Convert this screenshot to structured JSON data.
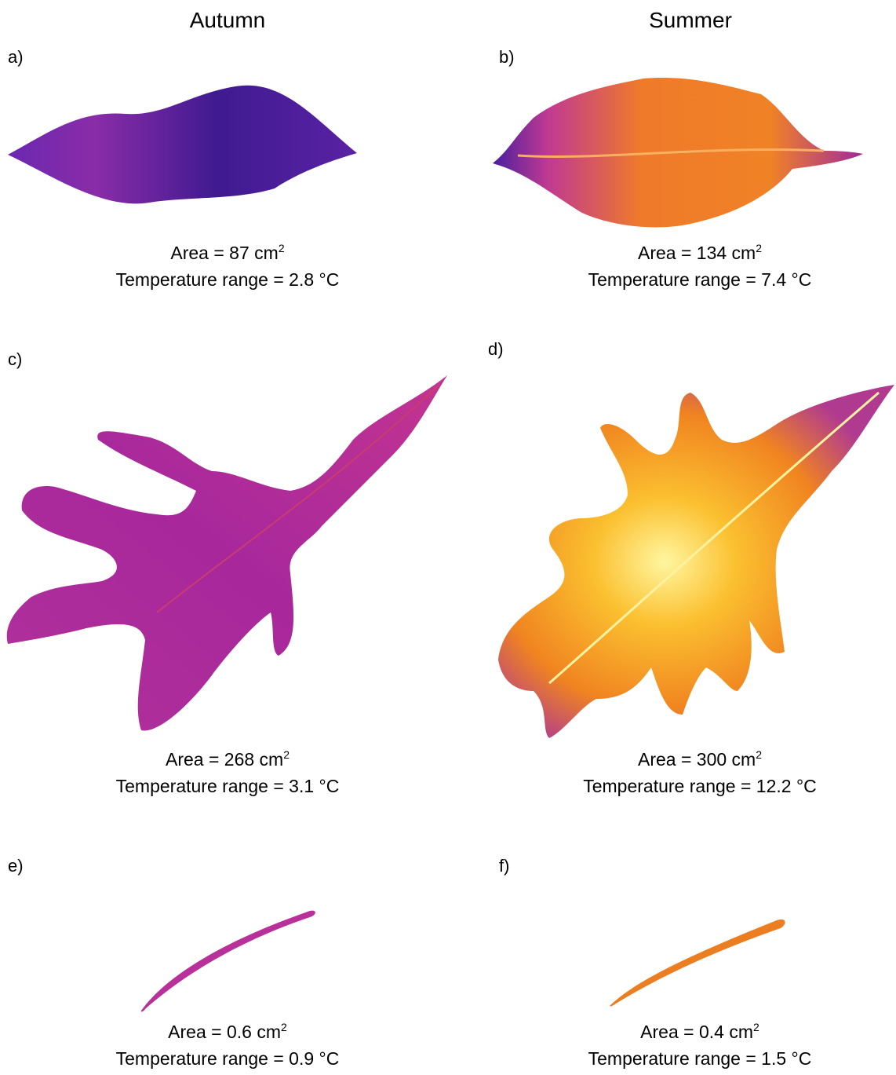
{
  "columns": [
    "Autumn",
    "Summer"
  ],
  "panels": [
    {
      "label": "a)",
      "area_value": "87",
      "area_unit": "cm",
      "area_exp": "2",
      "temp_range": "2.8",
      "temp_unit": "°C"
    },
    {
      "label": "b)",
      "area_value": "134",
      "area_unit": "cm",
      "area_exp": "2",
      "temp_range": "7.4",
      "temp_unit": "°C"
    },
    {
      "label": "c)",
      "area_value": "268",
      "area_unit": "cm",
      "area_exp": "2",
      "temp_range": "3.1",
      "temp_unit": "°C"
    },
    {
      "label": "d)",
      "area_value": "300",
      "area_unit": "cm",
      "area_exp": "2",
      "temp_range": "12.2",
      "temp_unit": "°C"
    },
    {
      "label": "e)",
      "area_value": "0.6",
      "area_unit": "cm",
      "area_exp": "2",
      "temp_range": "0.9",
      "temp_unit": "°C"
    },
    {
      "label": "f)",
      "area_value": "0.4",
      "area_unit": "cm",
      "area_exp": "2",
      "temp_range": "1.5",
      "temp_unit": "°C"
    }
  ],
  "text": {
    "area_prefix": "Area = ",
    "temp_prefix": "Temperature range = "
  },
  "colors": {
    "autumn_cool": "#4a1a9a",
    "autumn_warm": "#b02a9a",
    "summer_warm": "#f08020",
    "summer_hot": "#fff070"
  }
}
